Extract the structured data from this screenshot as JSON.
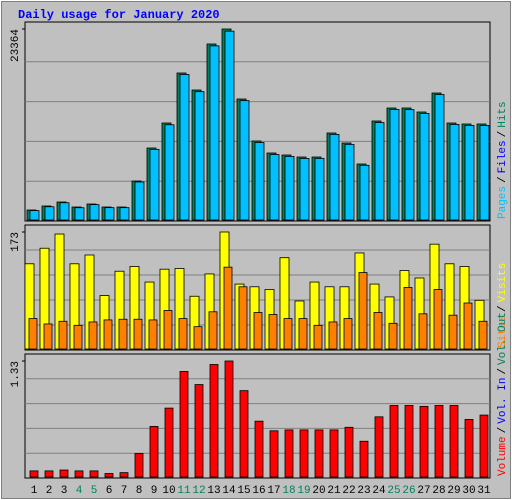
{
  "title": "Daily usage for January 2020",
  "legend_separator": "/",
  "chart_data": [
    {
      "type": "bar",
      "ylim": [
        0,
        23364
      ],
      "yticks": [
        23364
      ],
      "series": [
        {
          "name": "Hits",
          "color": "#00805c",
          "values": [
            1223,
            1713,
            2202,
            1590,
            1957,
            1590,
            1590,
            4771,
            8807,
            11865,
            17982,
            15902,
            21529,
            23364,
            14801,
            9664,
            8196,
            7951,
            7706,
            7706,
            10642,
            9419,
            6850,
            12110,
            13700,
            13700,
            13211,
            15535,
            11865,
            11743,
            11743
          ]
        },
        {
          "name": "Files",
          "color": "#0000ff",
          "values": [
            520,
            740,
            950,
            690,
            840,
            690,
            690,
            2050,
            3800,
            5100,
            7750,
            6850,
            9300,
            10100,
            6380,
            4170,
            3530,
            3430,
            3320,
            3320,
            4590,
            4060,
            2950,
            5220,
            5900,
            5900,
            5700,
            6700,
            5120,
            5060,
            5060
          ]
        },
        {
          "name": "Pages",
          "color": "#00c0ff",
          "values": [
            1150,
            1620,
            2110,
            1500,
            1880,
            1510,
            1510,
            4650,
            8640,
            11650,
            17800,
            15700,
            21300,
            23100,
            14600,
            9480,
            8010,
            7780,
            7530,
            7540,
            10470,
            9250,
            6690,
            11920,
            13520,
            13500,
            13040,
            15350,
            11690,
            11570,
            11560
          ]
        }
      ],
      "legend_order": [
        "Pages",
        "Files",
        "Hits"
      ]
    },
    {
      "type": "bar",
      "ylim": [
        0,
        173
      ],
      "yticks": [
        173
      ],
      "series": [
        {
          "name": "Visits",
          "color": "#ffff00",
          "values": [
            126,
            149,
            170,
            126,
            139,
            79,
            115,
            122,
            99,
            118,
            119,
            78,
            111,
            173,
            96,
            92,
            88,
            135,
            71,
            99,
            92,
            92,
            142,
            96,
            77,
            116,
            105,
            155,
            126,
            122,
            72
          ]
        },
        {
          "name": "Sites",
          "color": "#ff8000",
          "values": [
            45,
            37,
            41,
            35,
            40,
            43,
            44,
            44,
            43,
            57,
            45,
            33,
            55,
            121,
            92,
            54,
            51,
            45,
            45,
            35,
            40,
            45,
            113,
            54,
            38,
            91,
            52,
            88,
            50,
            68,
            41
          ]
        }
      ],
      "legend_order": [
        "Sites",
        "Visits"
      ]
    },
    {
      "type": "bar",
      "ylim": [
        0,
        1.33
      ],
      "yticks": [
        1.33
      ],
      "categories": [
        "1",
        "2",
        "3",
        "4",
        "5",
        "6",
        "7",
        "8",
        "9",
        "10",
        "11",
        "12",
        "13",
        "14",
        "15",
        "16",
        "17",
        "18",
        "19",
        "20",
        "21",
        "22",
        "23",
        "24",
        "25",
        "26",
        "27",
        "28",
        "29",
        "30",
        "31"
      ],
      "category_colors": [
        "#000000",
        "#000000",
        "#000000",
        "#00805c",
        "#00805c",
        "#000000",
        "#000000",
        "#000000",
        "#000000",
        "#000000",
        "#00805c",
        "#00805c",
        "#000000",
        "#000000",
        "#000000",
        "#000000",
        "#000000",
        "#00805c",
        "#00805c",
        "#000000",
        "#000000",
        "#000000",
        "#000000",
        "#000000",
        "#00805c",
        "#00805c",
        "#000000",
        "#000000",
        "#000000",
        "#000000",
        "#000000"
      ],
      "series": [
        {
          "name": "Volume",
          "color": "#ff0000",
          "values": [
            0.07,
            0.07,
            0.08,
            0.07,
            0.07,
            0.04,
            0.05,
            0.27,
            0.58,
            0.79,
            1.21,
            1.06,
            1.29,
            1.33,
            0.99,
            0.64,
            0.53,
            0.54,
            0.54,
            0.54,
            0.54,
            0.57,
            0.41,
            0.69,
            0.82,
            0.82,
            0.81,
            0.82,
            0.82,
            0.66,
            0.71
          ]
        }
      ],
      "extra_legend": [
        {
          "name": "Vol. In",
          "color": "#0000ff"
        },
        {
          "name": "Vol. Out",
          "color": "#00805c"
        }
      ]
    }
  ]
}
